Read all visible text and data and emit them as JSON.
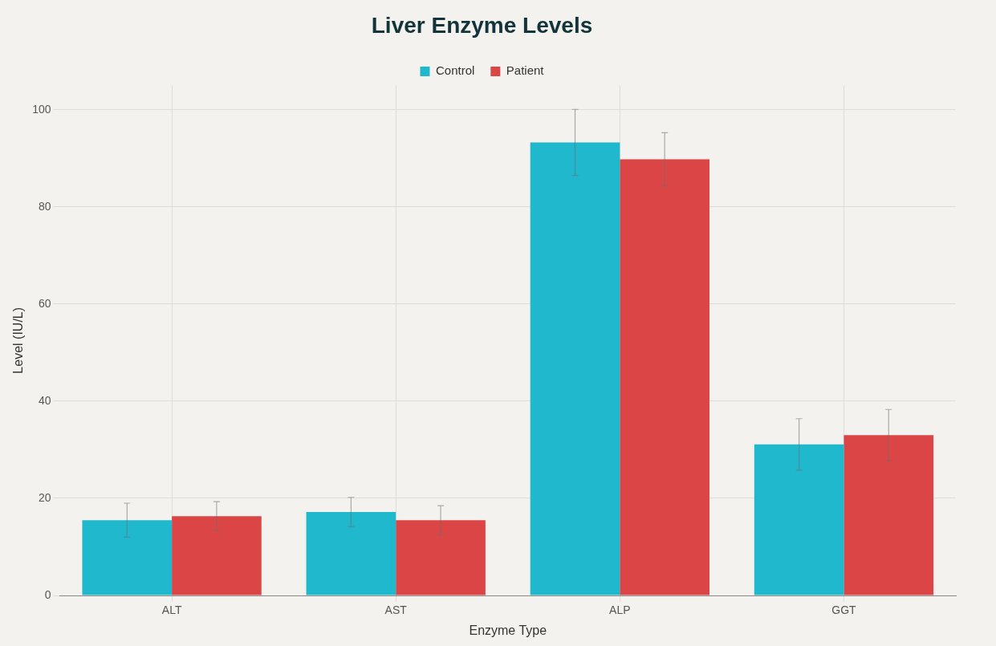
{
  "chart_data": {
    "type": "bar",
    "title": "Liver Enzyme Levels",
    "xlabel": "Enzyme Type",
    "ylabel": "Level (IU/L)",
    "categories": [
      "ALT",
      "AST",
      "ALP",
      "GGT"
    ],
    "series": [
      {
        "name": "Control",
        "color": "#1fb8cd",
        "values": [
          15.5,
          17.2,
          93.3,
          31.1
        ],
        "errors": [
          3.5,
          3,
          6.8,
          5.3
        ]
      },
      {
        "name": "Patient",
        "color": "#db4545",
        "values": [
          16.3,
          15.5,
          89.8,
          33
        ],
        "errors": [
          3,
          3,
          5.5,
          5.3
        ]
      }
    ],
    "ylim": [
      0,
      105
    ],
    "yticks": [
      0,
      20,
      40,
      60,
      80,
      100
    ],
    "grid": true,
    "legend": "top"
  }
}
